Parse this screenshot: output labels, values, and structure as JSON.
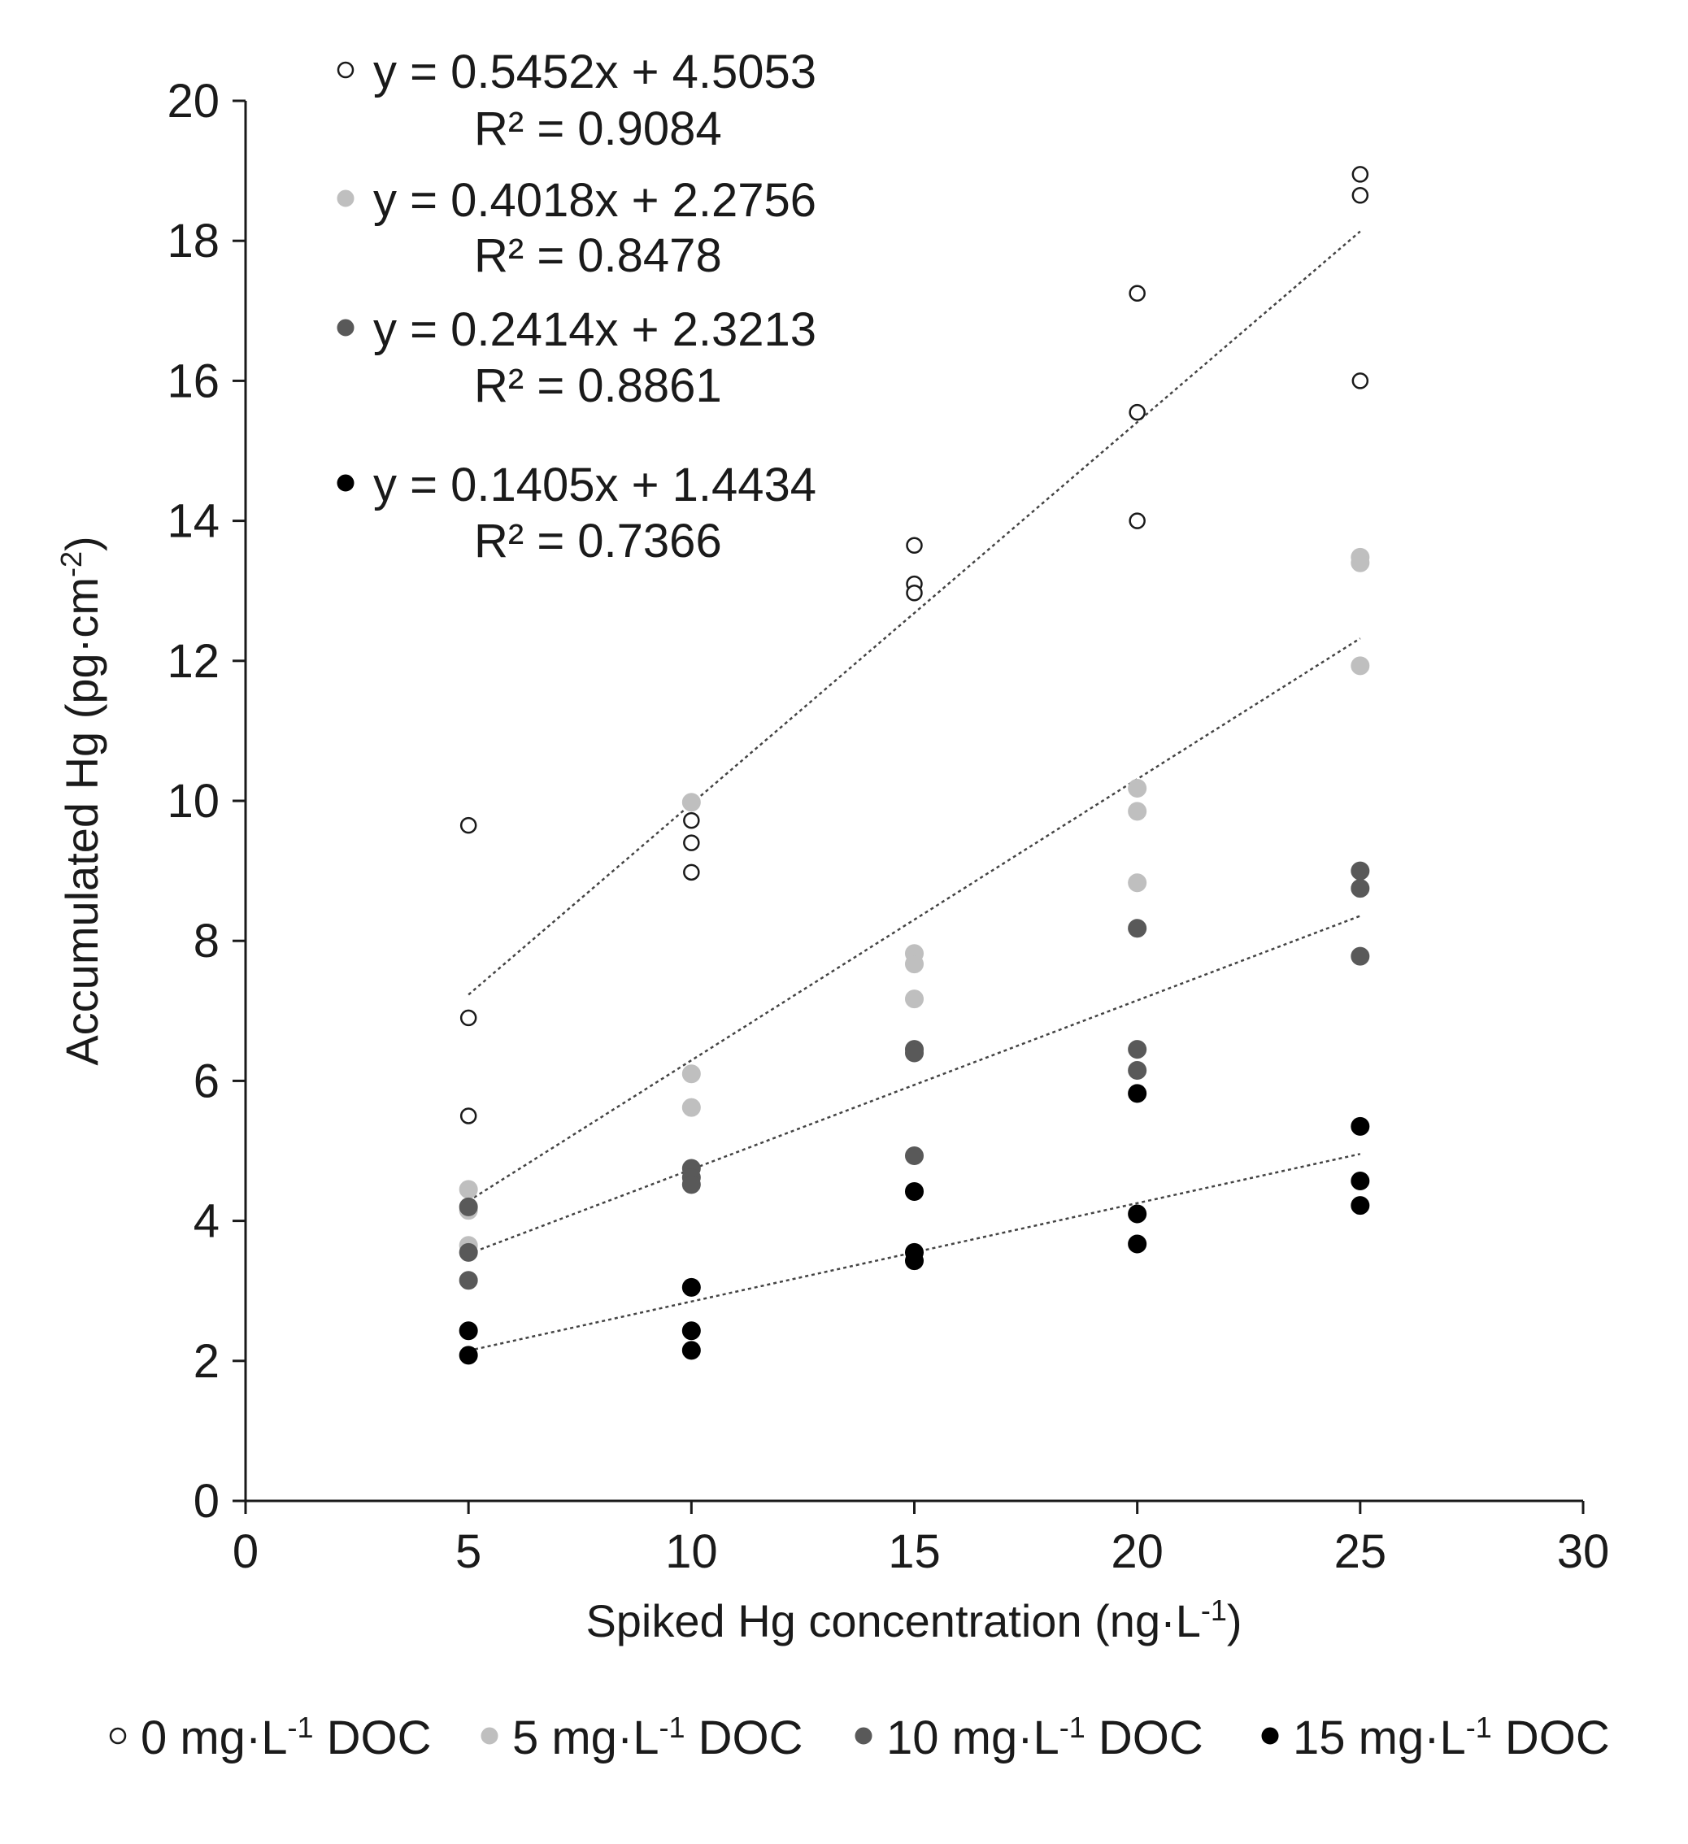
{
  "chart_data": {
    "type": "scatter",
    "title": "",
    "xlabel": "Spiked Hg concentration (ng·L",
    "xlabel_sup": "-1",
    "xlabel_end": ")",
    "ylabel": "Accumulated Hg (pg·cm",
    "ylabel_sup": "-2",
    "ylabel_end": ")",
    "xlim": [
      0,
      30
    ],
    "ylim": [
      0,
      20
    ],
    "xticks": [
      0,
      5,
      10,
      15,
      20,
      25,
      30
    ],
    "yticks": [
      0,
      2,
      4,
      6,
      8,
      10,
      12,
      14,
      16,
      18,
      20
    ],
    "xtick_labels": [
      "0",
      "5",
      "10",
      "15",
      "20",
      "25",
      "30"
    ],
    "ytick_labels": [
      "0",
      "2",
      "4",
      "6",
      "8",
      "10",
      "12",
      "14",
      "16",
      "18",
      "20"
    ],
    "grid": false,
    "legend_position": "bottom",
    "series": [
      {
        "name": "0 mg·L-1 DOC",
        "legend_pre": "0 mg·L",
        "legend_sup": "-1",
        "legend_post": " DOC",
        "fill": "#ffffff",
        "stroke": "#1a1a1a",
        "equation": "y = 0.5452x + 4.5053",
        "r2": "R² = 0.9084",
        "slope": 0.5452,
        "intercept": 4.5053,
        "points": [
          [
            5,
            9.65
          ],
          [
            5,
            6.9
          ],
          [
            5,
            5.5
          ],
          [
            10,
            9.98
          ],
          [
            10,
            9.72
          ],
          [
            10,
            9.4
          ],
          [
            10,
            8.98
          ],
          [
            15,
            13.65
          ],
          [
            15,
            13.1
          ],
          [
            15,
            12.97
          ],
          [
            20,
            17.25
          ],
          [
            20,
            15.55
          ],
          [
            20,
            14.0
          ],
          [
            25,
            18.95
          ],
          [
            25,
            18.65
          ],
          [
            25,
            16.0
          ]
        ]
      },
      {
        "name": "5 mg·L-1 DOC",
        "legend_pre": "5 mg·L",
        "legend_sup": "-1",
        "legend_post": " DOC",
        "fill": "#bfbfbf",
        "stroke": "#bfbfbf",
        "equation": "y = 0.4018x + 2.2756",
        "r2": "R² = 0.8478",
        "slope": 0.4018,
        "intercept": 2.2756,
        "points": [
          [
            5,
            4.45
          ],
          [
            5,
            4.15
          ],
          [
            5,
            3.65
          ],
          [
            10,
            9.98
          ],
          [
            10,
            6.1
          ],
          [
            10,
            5.62
          ],
          [
            15,
            7.82
          ],
          [
            15,
            7.67
          ],
          [
            15,
            7.17
          ],
          [
            20,
            10.18
          ],
          [
            20,
            9.85
          ],
          [
            20,
            8.83
          ],
          [
            25,
            13.48
          ],
          [
            25,
            13.4
          ],
          [
            25,
            11.93
          ]
        ]
      },
      {
        "name": "10 mg·L-1 DOC",
        "legend_pre": "10 mg·L",
        "legend_sup": "-1",
        "legend_post": " DOC",
        "fill": "#595959",
        "stroke": "#595959",
        "equation": "y = 0.2414x + 2.3213",
        "r2": "R² = 0.8861",
        "slope": 0.2414,
        "intercept": 2.3213,
        "points": [
          [
            5,
            4.2
          ],
          [
            5,
            3.55
          ],
          [
            5,
            3.15
          ],
          [
            10,
            4.75
          ],
          [
            10,
            4.62
          ],
          [
            10,
            4.52
          ],
          [
            15,
            6.45
          ],
          [
            15,
            6.4
          ],
          [
            15,
            4.93
          ],
          [
            20,
            8.18
          ],
          [
            20,
            6.45
          ],
          [
            20,
            6.15
          ],
          [
            25,
            9.0
          ],
          [
            25,
            8.75
          ],
          [
            25,
            7.78
          ]
        ]
      },
      {
        "name": "15 mg·L-1 DOC",
        "legend_pre": "15 mg·L",
        "legend_sup": "-1",
        "legend_post": " DOC",
        "fill": "#000000",
        "stroke": "#000000",
        "equation": "y = 0.1405x + 1.4434",
        "r2": "R² = 0.7366",
        "slope": 0.1405,
        "intercept": 1.4434,
        "points": [
          [
            5,
            2.43
          ],
          [
            5,
            2.08
          ],
          [
            10,
            3.05
          ],
          [
            10,
            2.43
          ],
          [
            10,
            2.15
          ],
          [
            15,
            4.42
          ],
          [
            15,
            3.55
          ],
          [
            15,
            3.43
          ],
          [
            20,
            5.82
          ],
          [
            20,
            4.1
          ],
          [
            20,
            3.67
          ],
          [
            25,
            5.35
          ],
          [
            25,
            4.57
          ],
          [
            25,
            4.22
          ]
        ]
      }
    ]
  }
}
